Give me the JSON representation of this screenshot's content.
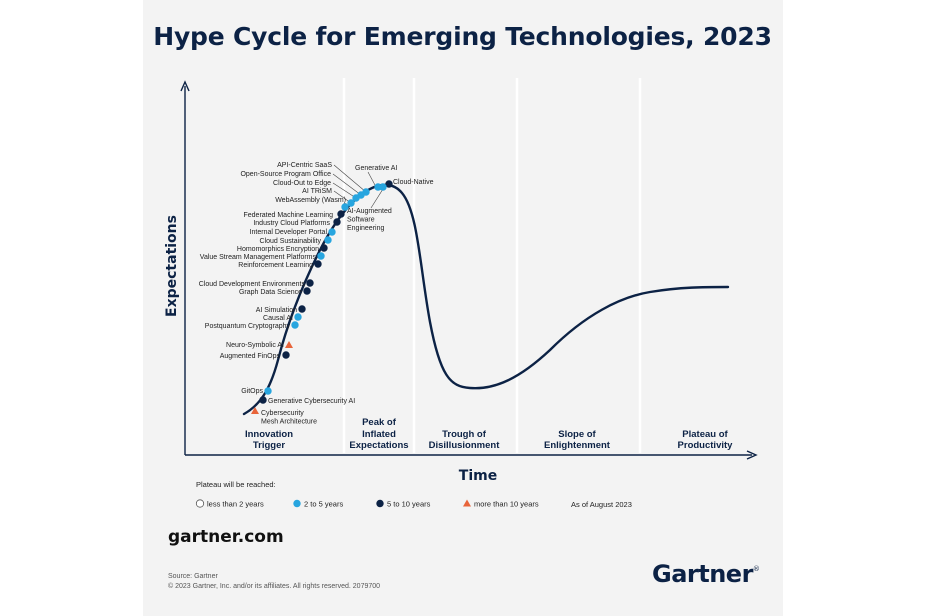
{
  "title": "Hype Cycle for Emerging Technologies, 2023",
  "y_label": "Expectations",
  "x_label": "Time",
  "phases": [
    {
      "line1": "Innovation",
      "line2": "Trigger"
    },
    {
      "line1": "Peak of",
      "line2": "Inflated",
      "line3": "Expectations"
    },
    {
      "line1": "Trough of",
      "line2": "Disillusionment"
    },
    {
      "line1": "Slope of",
      "line2": "Enlightenment"
    },
    {
      "line1": "Plateau of",
      "line2": "Productivity"
    }
  ],
  "legend": {
    "heading": "Plateau will be reached:",
    "items": [
      {
        "label": "less than 2 years",
        "marker": "circle-open",
        "color": "#ffffff"
      },
      {
        "label": "2 to 5 years",
        "marker": "circle",
        "color": "#27a5df"
      },
      {
        "label": "5 to 10 years",
        "marker": "circle",
        "color": "#0c2245"
      },
      {
        "label": "more than 10 years",
        "marker": "triangle",
        "color": "#e8643a"
      }
    ],
    "as_of": "As of August 2023"
  },
  "technologies": [
    {
      "name": "Cybersecurity",
      "name2": "Mesh Architecture",
      "category": "more than 10 years"
    },
    {
      "name": "Generative Cybersecurity AI",
      "category": "5 to 10 years"
    },
    {
      "name": "GitOps",
      "category": "2 to 5 years"
    },
    {
      "name": "Augmented FinOps",
      "category": "5 to 10 years"
    },
    {
      "name": "Neuro-Symbolic AI",
      "category": "more than 10 years"
    },
    {
      "name": "Postquantum Cryptography",
      "category": "2 to 5 years"
    },
    {
      "name": "Causal AI",
      "category": "2 to 5 years"
    },
    {
      "name": "AI Simulation",
      "category": "5 to 10 years"
    },
    {
      "name": "Graph Data Science",
      "category": "5 to 10 years"
    },
    {
      "name": "Cloud Development Environments",
      "category": "5 to 10 years"
    },
    {
      "name": "Reinforcement Learning",
      "category": "5 to 10 years"
    },
    {
      "name": "Value Stream Management Platforms",
      "category": "2 to 5 years"
    },
    {
      "name": "Homomorphics Encryption",
      "category": "5 to 10 years"
    },
    {
      "name": "Cloud Sustainability",
      "category": "2 to 5 years"
    },
    {
      "name": "Internal Developer Portal",
      "category": "2 to 5 years"
    },
    {
      "name": "Industry Cloud Platforms",
      "category": "5 to 10 years"
    },
    {
      "name": "Federated Machine Learning",
      "category": "5 to 10 years"
    },
    {
      "name": "WebAssembly (Wasm)",
      "category": "2 to 5 years"
    },
    {
      "name": "AI TRiSM",
      "category": "2 to 5 years"
    },
    {
      "name": "Cloud-Out to Edge",
      "category": "2 to 5 years"
    },
    {
      "name": "Open-Source Program Office",
      "category": "2 to 5 years"
    },
    {
      "name": "API-Centric SaaS",
      "category": "2 to 5 years"
    },
    {
      "name": "Generative AI",
      "category": "2 to 5 years"
    },
    {
      "name": "Cloud-Native",
      "category": "5 to 10 years"
    },
    {
      "name": "AI-Augmented",
      "name2": "Software",
      "name3": "Engineering",
      "category": "2 to 5 years"
    }
  ],
  "footer": {
    "site": "gartner.com",
    "source": "Source: Gartner",
    "copyright": "© 2023 Gartner, Inc. and/or its affiliates. All rights reserved. 2079700",
    "logo": "Gartner",
    "logo_mark": "®"
  }
}
